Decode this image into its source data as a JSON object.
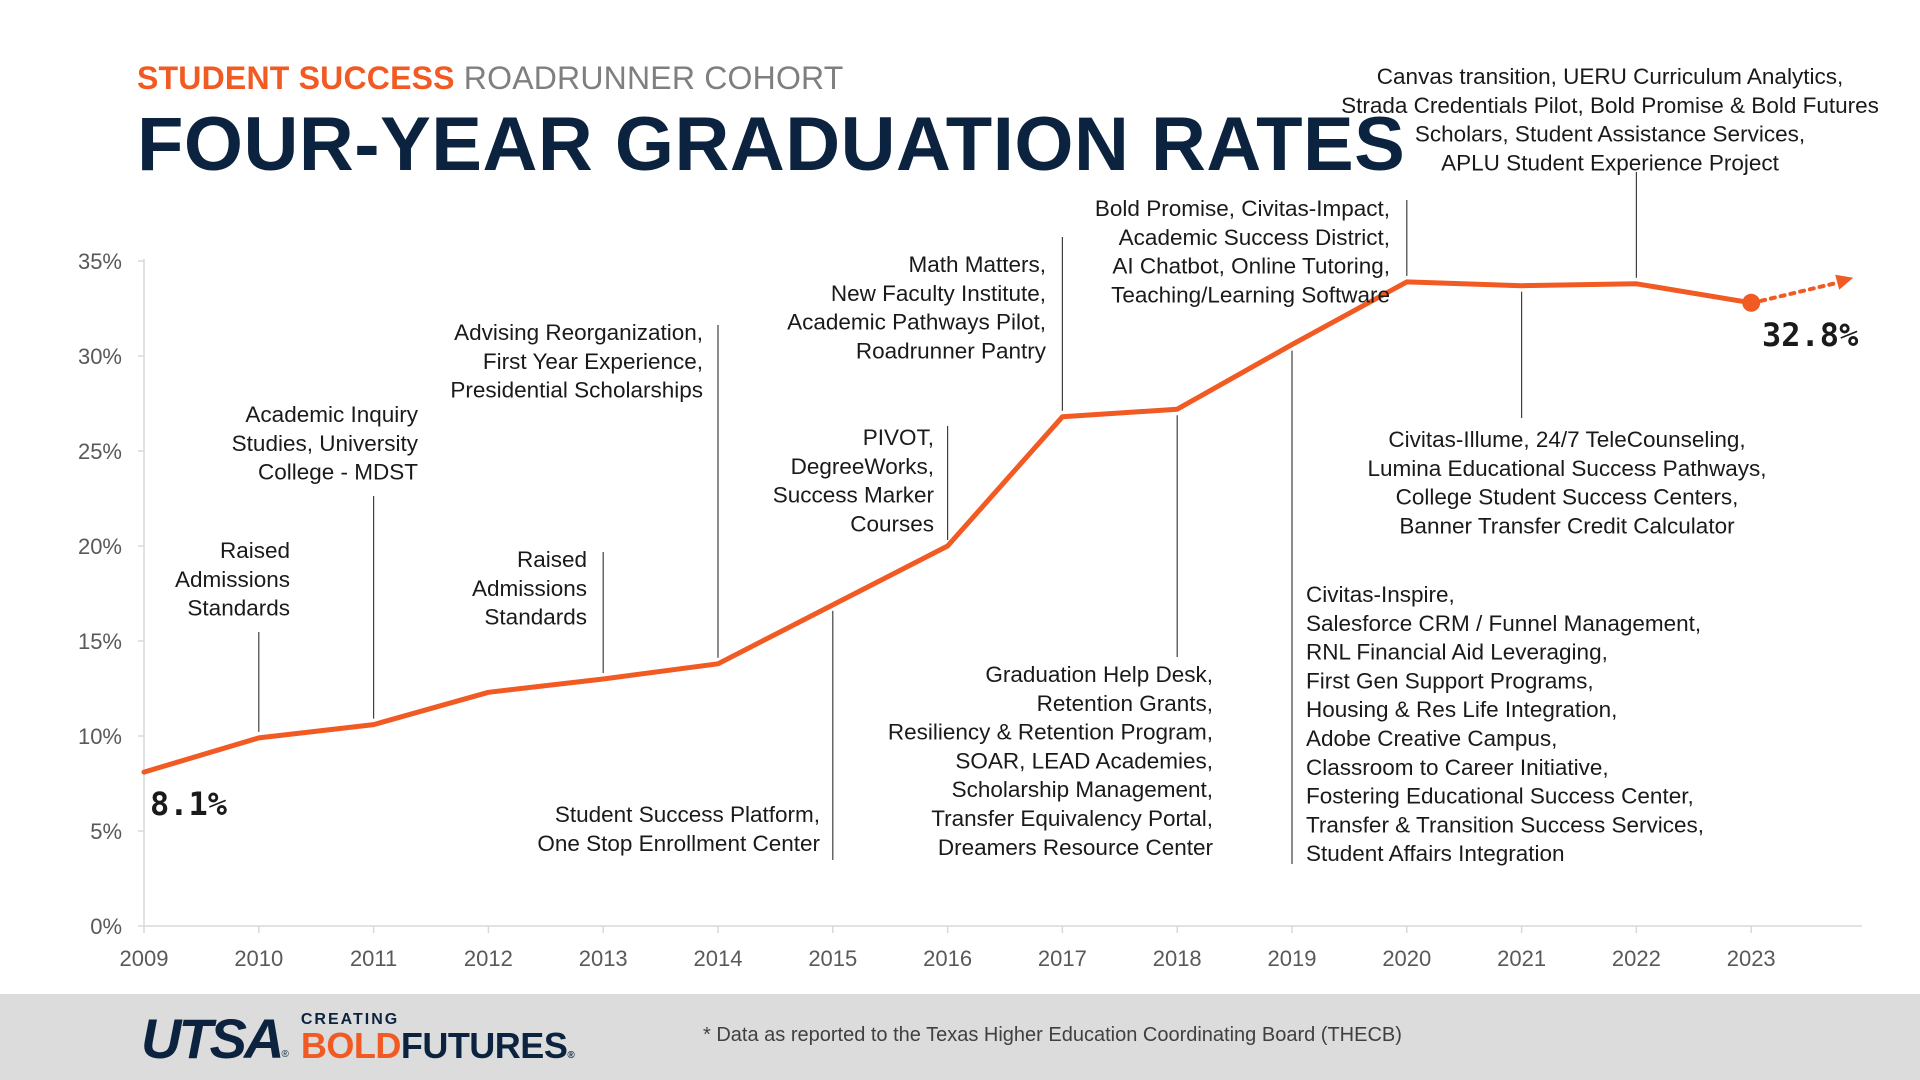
{
  "header": {
    "subtitle_accent": "STUDENT SUCCESS",
    "subtitle_rest": "ROADRUNNER COHORT",
    "title": "FOUR-YEAR GRADUATION RATES"
  },
  "chart_data": {
    "type": "line",
    "x": [
      2009,
      2010,
      2011,
      2012,
      2013,
      2014,
      2015,
      2016,
      2017,
      2018,
      2019,
      2020,
      2021,
      2022,
      2023
    ],
    "series": [
      {
        "values": [
          8.1,
          9.9,
          10.6,
          12.3,
          13.0,
          13.8,
          16.9,
          20.0,
          26.8,
          27.2,
          30.6,
          33.9,
          33.7,
          33.8,
          32.8
        ]
      }
    ],
    "y_ticks": [
      "0%",
      "5%",
      "10%",
      "15%",
      "20%",
      "25%",
      "30%",
      "35%"
    ],
    "ylim": [
      0,
      35
    ],
    "x_ticks": [
      "2009",
      "2010",
      "2011",
      "2012",
      "2013",
      "2014",
      "2015",
      "2016",
      "2017",
      "2018",
      "2019",
      "2020",
      "2021",
      "2022",
      "2023"
    ],
    "start_label": "8.1%",
    "end_label": "32.8%",
    "trend_arrow": "dotted arrow continuing upward after 2023",
    "line_color": "#f15a22",
    "grid": false,
    "annotations": [
      {
        "year": 2010,
        "position": "above",
        "lines": [
          "Raised",
          "Admissions",
          "Standards"
        ]
      },
      {
        "year": 2011,
        "position": "above",
        "lines": [
          "Academic Inquiry",
          "Studies, University",
          "College - MDST"
        ]
      },
      {
        "year": 2013,
        "position": "above",
        "lines": [
          "Raised",
          "Admissions",
          "Standards"
        ]
      },
      {
        "year": 2014,
        "position": "above",
        "lines": [
          "Advising Reorganization,",
          "First Year Experience,",
          "Presidential Scholarships"
        ]
      },
      {
        "year": 2015,
        "position": "below",
        "lines": [
          "Student Success Platform,",
          "One Stop Enrollment Center"
        ]
      },
      {
        "year": 2016,
        "position": "above",
        "lines": [
          "PIVOT,",
          "DegreeWorks,",
          "Success Marker",
          "Courses"
        ]
      },
      {
        "year": 2017,
        "position": "above",
        "lines": [
          "Math Matters,",
          "New Faculty Institute,",
          "Academic Pathways Pilot,",
          "Roadrunner Pantry"
        ]
      },
      {
        "year": 2018,
        "position": "below",
        "lines": [
          "Graduation Help Desk,",
          "Retention Grants,",
          "Resiliency & Retention Program,",
          "SOAR, LEAD Academies,",
          "Scholarship Management,",
          "Transfer Equivalency Portal,",
          "Dreamers Resource Center"
        ]
      },
      {
        "year": 2019,
        "position": "below",
        "lines": [
          "Civitas-Inspire,",
          "Salesforce CRM / Funnel Management,",
          "RNL Financial Aid Leveraging,",
          "First Gen Support Programs,",
          "Housing & Res Life Integration,",
          "Adobe Creative Campus,",
          "Classroom to Career Initiative,",
          "Fostering Educational Success Center,",
          "Transfer & Transition Success Services,",
          "Student Affairs Integration"
        ]
      },
      {
        "year": 2020,
        "position": "above",
        "lines": [
          "Bold Promise, Civitas-Impact,",
          "Academic Success District,",
          "AI Chatbot, Online Tutoring,",
          "Teaching/Learning Software"
        ]
      },
      {
        "year": 2021,
        "position": "below",
        "lines": [
          "Civitas-Illume, 24/7 TeleCounseling,",
          "Lumina Educational Success Pathways,",
          "College Student Success Centers,",
          "Banner Transfer Credit Calculator"
        ]
      },
      {
        "year": 2022,
        "position": "above",
        "lines": [
          "Canvas transition, UERU Curriculum Analytics,",
          "Strada Credentials Pilot, Bold Promise & Bold Futures",
          "Scholars, Student Assistance Services,",
          "APLU Student Experience Project"
        ]
      }
    ]
  },
  "footer": {
    "logo_utsa": "UTSA",
    "logo_reg": "®",
    "logo_creating": "CREATING",
    "logo_bold": "BOLD",
    "logo_futures": "FUTURES",
    "logo_futures_reg": "®",
    "footnote": "* Data as reported to the Texas Higher Education Coordinating Board (THECB)"
  }
}
